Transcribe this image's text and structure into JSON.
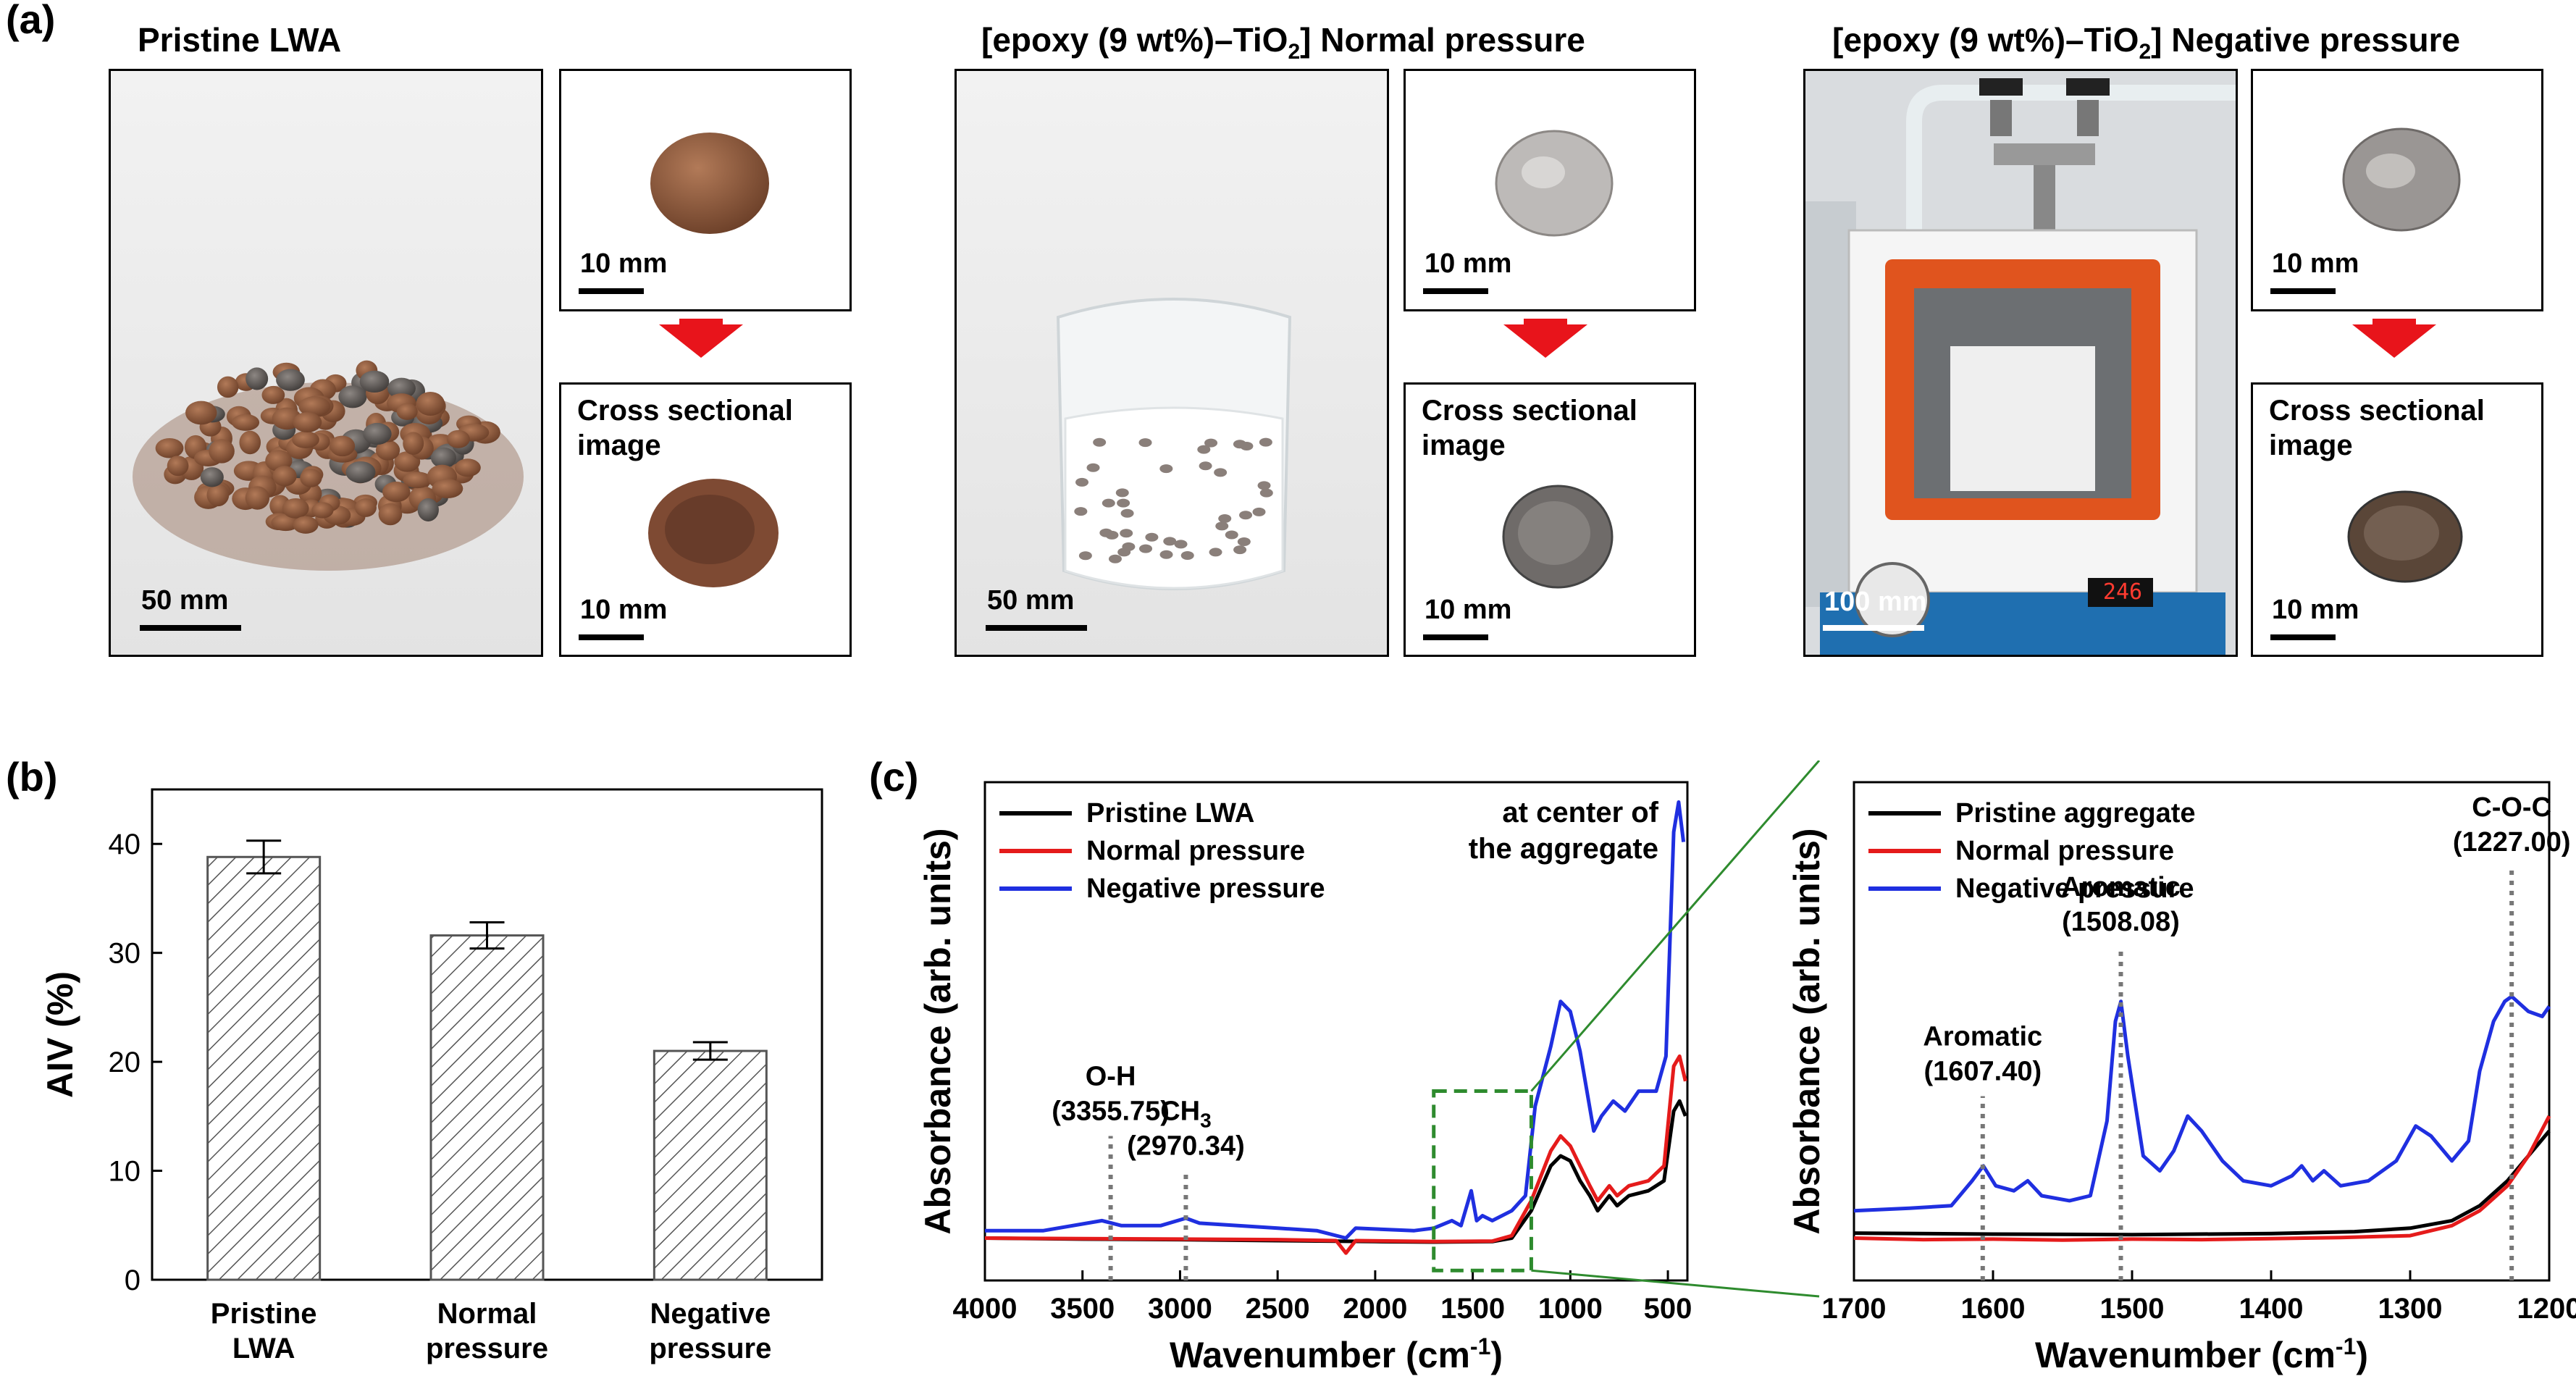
{
  "panel_a": {
    "label": "(a)",
    "groups": [
      {
        "title": "Pristine LWA",
        "main_scale": "50 mm",
        "top_scale": "10 mm",
        "cross_title_1": "Cross sectional",
        "cross_title_2": "image",
        "bottom_scale": "10 mm"
      },
      {
        "title_pre": "[epoxy (9 wt%)–TiO",
        "title_sub": "2",
        "title_post": "] Normal pressure",
        "main_scale": "50 mm",
        "top_scale": "10 mm",
        "cross_title_1": "Cross sectional",
        "cross_title_2": "image",
        "bottom_scale": "10 mm"
      },
      {
        "title_pre": "[epoxy (9 wt%)–TiO",
        "title_sub": "2",
        "title_post": "] Negative pressure",
        "main_scale": "100 mm",
        "top_scale": "10 mm",
        "cross_title_1": "Cross sectional",
        "cross_title_2": "image",
        "bottom_scale": "10 mm",
        "display_reading": "246"
      }
    ],
    "colors": {
      "arrow": "#e8141b",
      "aggregate": "#8a5a3c",
      "coated": "#b9b7b6",
      "oven_door": "#e0541e",
      "oven_base": "#1f6fb0"
    }
  },
  "panel_b": {
    "label": "(b)",
    "chart_data": {
      "type": "bar",
      "categories": [
        "Pristine LWA",
        "Normal pressure",
        "Negative pressure"
      ],
      "category_lines": [
        [
          "Pristine",
          "LWA"
        ],
        [
          "Normal",
          "pressure"
        ],
        [
          "Negative",
          "pressure"
        ]
      ],
      "values": [
        38.8,
        31.6,
        21.0
      ],
      "errors": [
        1.5,
        1.2,
        0.8
      ],
      "ylabel": "AIV (%)",
      "xlabel": "",
      "ylim": [
        0,
        45
      ],
      "yticks": [
        0,
        10,
        20,
        30,
        40
      ],
      "pattern": "hatched"
    }
  },
  "panel_c": {
    "label": "(c)",
    "chart_data": [
      {
        "type": "line",
        "xlabel_pre": "Wavenumber (cm",
        "xlabel_sup": "-1",
        "xlabel_post": ")",
        "ylabel": "Absorbance (arb. units)",
        "xlim": [
          4000,
          400
        ],
        "xticks": [
          4000,
          3500,
          3000,
          2500,
          2000,
          1500,
          1000,
          500
        ],
        "ylim": [
          0,
          1
        ],
        "legend": [
          {
            "name": "Pristine LWA",
            "color": "#000000"
          },
          {
            "name": "Normal pressure",
            "color": "#e51b1b"
          },
          {
            "name": "Negative pressure",
            "color": "#1f2fe0"
          }
        ],
        "annotation_1": "at center of",
        "annotation_2": "the aggregate",
        "peaks": [
          {
            "label": "O-H",
            "value": "(3355.75)",
            "x": 3355.75
          },
          {
            "label_main": "CH",
            "label_sub": "3",
            "value": "(2970.34)",
            "x": 2970.34
          }
        ],
        "zoom_box": [
          1700,
          1200
        ],
        "series": [
          {
            "name": "Pristine LWA",
            "color": "#000000",
            "points": [
              [
                4000,
                0.085
              ],
              [
                3500,
                0.083
              ],
              [
                3000,
                0.082
              ],
              [
                2500,
                0.08
              ],
              [
                2000,
                0.078
              ],
              [
                1700,
                0.077
              ],
              [
                1400,
                0.078
              ],
              [
                1300,
                0.085
              ],
              [
                1200,
                0.14
              ],
              [
                1100,
                0.23
              ],
              [
                1050,
                0.25
              ],
              [
                1000,
                0.24
              ],
              [
                950,
                0.2
              ],
              [
                900,
                0.17
              ],
              [
                860,
                0.14
              ],
              [
                800,
                0.17
              ],
              [
                760,
                0.15
              ],
              [
                700,
                0.17
              ],
              [
                600,
                0.18
              ],
              [
                520,
                0.2
              ],
              [
                470,
                0.34
              ],
              [
                440,
                0.36
              ],
              [
                410,
                0.33
              ]
            ]
          },
          {
            "name": "Normal pressure",
            "color": "#e51b1b",
            "points": [
              [
                4000,
                0.085
              ],
              [
                3500,
                0.084
              ],
              [
                3000,
                0.083
              ],
              [
                2500,
                0.082
              ],
              [
                2200,
                0.08
              ],
              [
                2150,
                0.055
              ],
              [
                2100,
                0.08
              ],
              [
                1700,
                0.078
              ],
              [
                1400,
                0.079
              ],
              [
                1300,
                0.09
              ],
              [
                1200,
                0.16
              ],
              [
                1100,
                0.26
              ],
              [
                1050,
                0.29
              ],
              [
                1000,
                0.27
              ],
              [
                950,
                0.23
              ],
              [
                900,
                0.19
              ],
              [
                860,
                0.16
              ],
              [
                800,
                0.19
              ],
              [
                760,
                0.17
              ],
              [
                700,
                0.19
              ],
              [
                600,
                0.2
              ],
              [
                520,
                0.23
              ],
              [
                470,
                0.43
              ],
              [
                440,
                0.45
              ],
              [
                410,
                0.4
              ]
            ]
          },
          {
            "name": "Negative pressure",
            "color": "#1f2fe0",
            "points": [
              [
                4000,
                0.1
              ],
              [
                3700,
                0.1
              ],
              [
                3400,
                0.12
              ],
              [
                3300,
                0.11
              ],
              [
                3100,
                0.11
              ],
              [
                2970,
                0.125
              ],
              [
                2900,
                0.115
              ],
              [
                2500,
                0.105
              ],
              [
                2300,
                0.1
              ],
              [
                2150,
                0.085
              ],
              [
                2100,
                0.105
              ],
              [
                1800,
                0.1
              ],
              [
                1700,
                0.105
              ],
              [
                1607,
                0.12
              ],
              [
                1560,
                0.11
              ],
              [
                1508,
                0.18
              ],
              [
                1480,
                0.12
              ],
              [
                1450,
                0.13
              ],
              [
                1400,
                0.12
              ],
              [
                1300,
                0.14
              ],
              [
                1230,
                0.17
              ],
              [
                1180,
                0.35
              ],
              [
                1100,
                0.47
              ],
              [
                1050,
                0.56
              ],
              [
                1000,
                0.54
              ],
              [
                950,
                0.46
              ],
              [
                880,
                0.3
              ],
              [
                840,
                0.33
              ],
              [
                780,
                0.36
              ],
              [
                720,
                0.34
              ],
              [
                650,
                0.38
              ],
              [
                560,
                0.38
              ],
              [
                510,
                0.45
              ],
              [
                470,
                0.9
              ],
              [
                445,
                0.96
              ],
              [
                420,
                0.88
              ]
            ]
          }
        ]
      },
      {
        "type": "line",
        "xlabel_pre": "Wavenumber (cm",
        "xlabel_sup": "-1",
        "xlabel_post": ")",
        "ylabel": "Absorbance (arb. units)",
        "xlim": [
          1700,
          1200
        ],
        "xticks": [
          1700,
          1600,
          1500,
          1400,
          1300,
          1200
        ],
        "ylim": [
          0,
          1
        ],
        "legend": [
          {
            "name": "Pristine aggregate",
            "color": "#000000"
          },
          {
            "name": "Normal pressure",
            "color": "#e51b1b"
          },
          {
            "name": "Negative pressure",
            "color": "#1f2fe0"
          }
        ],
        "peaks": [
          {
            "label": "Aromatic",
            "value": "(1607.40)",
            "x": 1607.4
          },
          {
            "label": "Aromatic",
            "value": "(1508.08)",
            "x": 1508.08
          },
          {
            "label": "C-O-C",
            "value": "(1227.00)",
            "x": 1227.0
          }
        ],
        "series": [
          {
            "name": "Pristine aggregate",
            "color": "#000000",
            "points": [
              [
                1700,
                0.095
              ],
              [
                1600,
                0.093
              ],
              [
                1500,
                0.092
              ],
              [
                1400,
                0.094
              ],
              [
                1340,
                0.098
              ],
              [
                1300,
                0.105
              ],
              [
                1270,
                0.12
              ],
              [
                1250,
                0.15
              ],
              [
                1230,
                0.2
              ],
              [
                1215,
                0.25
              ],
              [
                1200,
                0.3
              ]
            ]
          },
          {
            "name": "Normal pressure",
            "color": "#e51b1b",
            "points": [
              [
                1700,
                0.085
              ],
              [
                1650,
                0.082
              ],
              [
                1600,
                0.083
              ],
              [
                1550,
                0.081
              ],
              [
                1500,
                0.083
              ],
              [
                1450,
                0.082
              ],
              [
                1400,
                0.084
              ],
              [
                1350,
                0.086
              ],
              [
                1300,
                0.09
              ],
              [
                1270,
                0.11
              ],
              [
                1250,
                0.14
              ],
              [
                1230,
                0.19
              ],
              [
                1215,
                0.25
              ],
              [
                1200,
                0.33
              ]
            ]
          },
          {
            "name": "Negative pressure",
            "color": "#1f2fe0",
            "points": [
              [
                1700,
                0.14
              ],
              [
                1660,
                0.145
              ],
              [
                1630,
                0.15
              ],
              [
                1615,
                0.2
              ],
              [
                1607,
                0.23
              ],
              [
                1598,
                0.19
              ],
              [
                1585,
                0.18
              ],
              [
                1575,
                0.2
              ],
              [
                1565,
                0.17
              ],
              [
                1545,
                0.16
              ],
              [
                1530,
                0.17
              ],
              [
                1518,
                0.32
              ],
              [
                1512,
                0.52
              ],
              [
                1508,
                0.56
              ],
              [
                1503,
                0.45
              ],
              [
                1492,
                0.25
              ],
              [
                1480,
                0.22
              ],
              [
                1470,
                0.26
              ],
              [
                1460,
                0.33
              ],
              [
                1450,
                0.3
              ],
              [
                1435,
                0.24
              ],
              [
                1420,
                0.2
              ],
              [
                1400,
                0.19
              ],
              [
                1385,
                0.21
              ],
              [
                1378,
                0.23
              ],
              [
                1370,
                0.2
              ],
              [
                1362,
                0.22
              ],
              [
                1350,
                0.19
              ],
              [
                1330,
                0.2
              ],
              [
                1310,
                0.24
              ],
              [
                1296,
                0.31
              ],
              [
                1285,
                0.29
              ],
              [
                1270,
                0.24
              ],
              [
                1258,
                0.28
              ],
              [
                1250,
                0.42
              ],
              [
                1240,
                0.52
              ],
              [
                1232,
                0.56
              ],
              [
                1227,
                0.57
              ],
              [
                1215,
                0.54
              ],
              [
                1205,
                0.53
              ],
              [
                1200,
                0.55
              ]
            ]
          }
        ]
      }
    ]
  }
}
